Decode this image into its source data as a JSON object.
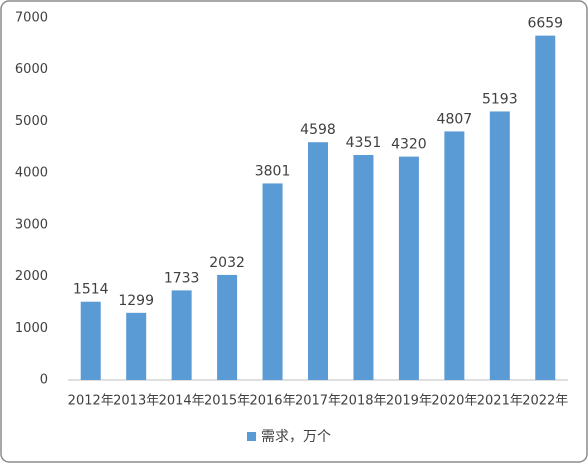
{
  "chart_data": {
    "type": "bar",
    "categories": [
      "2012年",
      "2013年",
      "2014年",
      "2015年",
      "2016年",
      "2017年",
      "2018年",
      "2019年",
      "2020年",
      "2021年",
      "2022年"
    ],
    "series": [
      {
        "name": "需求，万个",
        "color": "#5b9bd5",
        "values": [
          1514,
          1299,
          1733,
          2032,
          3801,
          4598,
          4351,
          4320,
          4807,
          5193,
          6659
        ]
      }
    ],
    "ylim": [
      0,
      7000
    ],
    "yticks": [
      0,
      1000,
      2000,
      3000,
      4000,
      5000,
      6000,
      7000
    ],
    "grid": false,
    "legend": "bottom"
  }
}
